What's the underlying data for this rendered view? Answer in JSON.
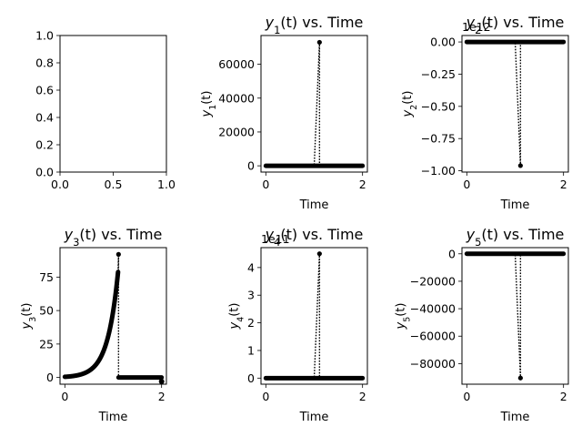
{
  "chart_data": [
    {
      "type": "line",
      "title": "",
      "xlabel": "",
      "ylabel": "",
      "xlim": [
        0.0,
        1.0
      ],
      "ylim": [
        0.0,
        1.0
      ],
      "xticks": [
        0.0,
        0.5,
        1.0
      ],
      "xtick_labels": [
        "0.0",
        "0.5",
        "1.0"
      ],
      "yticks": [
        0.0,
        0.2,
        0.4,
        0.6,
        0.8,
        1.0
      ],
      "ytick_labels": [
        "0.0",
        "0.2",
        "0.4",
        "0.6",
        "0.8",
        "1.0"
      ],
      "series": []
    },
    {
      "type": "line",
      "title": "y_1(t) vs. Time",
      "title_main": "y",
      "title_sub": "1",
      "title_rest": "(t) vs. Time",
      "xlabel": "Time",
      "ylabel": "y_1(t)",
      "ylabel_main": "y",
      "ylabel_sub": "1",
      "ylabel_rest": "(t)",
      "xlim": [
        -0.1,
        2.1
      ],
      "ylim": [
        -3700,
        77000
      ],
      "xticks": [
        0,
        2
      ],
      "xtick_labels": [
        "0",
        "2"
      ],
      "yticks": [
        0,
        20000,
        40000,
        60000
      ],
      "ytick_labels": [
        "0",
        "20000",
        "40000",
        "60000"
      ],
      "color": "#000000",
      "baseline": 0,
      "x_start": 0,
      "x_end": 2,
      "spike": {
        "x": 1.11,
        "y": 73000
      },
      "series": [
        {
          "x": [
            0,
            0.5,
            1.0,
            1.11,
            1.11,
            1.5,
            2.0
          ],
          "y": [
            0,
            0,
            0,
            73000,
            0,
            0,
            0
          ]
        }
      ]
    },
    {
      "type": "line",
      "title": "y_2(t) vs. Time",
      "title_main": "y",
      "title_sub": "2",
      "title_rest": "(t) vs. Time",
      "xlabel": "Time",
      "ylabel": "y_2(t)",
      "ylabel_main": "y",
      "ylabel_sub": "2",
      "ylabel_rest": "(t)",
      "offset_text": "1e12",
      "xlim": [
        -0.1,
        2.1
      ],
      "ylim": [
        -1.01,
        0.05
      ],
      "xticks": [
        0,
        2
      ],
      "xtick_labels": [
        "0",
        "2"
      ],
      "yticks": [
        0.0,
        -0.25,
        -0.5,
        -0.75,
        -1.0
      ],
      "ytick_labels": [
        "0.00",
        "−0.25",
        "−0.50",
        "−0.75",
        "−1.00"
      ],
      "color": "#000000",
      "baseline": 0,
      "x_start": 0,
      "x_end": 2,
      "spike": {
        "x": 1.11,
        "y": -0.96
      },
      "series": [
        {
          "x": [
            0,
            0.5,
            1.0,
            1.11,
            1.11,
            1.5,
            2.0
          ],
          "y": [
            0,
            0,
            0,
            -0.96,
            0,
            0,
            0
          ]
        }
      ]
    },
    {
      "type": "line",
      "title": "y_3(t) vs. Time",
      "title_main": "y",
      "title_sub": "3",
      "title_rest": "(t) vs. Time",
      "xlabel": "Time",
      "ylabel": "y_3(t)",
      "ylabel_main": "y",
      "ylabel_sub": "3",
      "ylabel_rest": "(t)",
      "xlim": [
        -0.1,
        2.1
      ],
      "ylim": [
        -5,
        97
      ],
      "xticks": [
        0,
        2
      ],
      "xtick_labels": [
        "0",
        "2"
      ],
      "yticks": [
        0,
        25,
        50,
        75
      ],
      "ytick_labels": [
        "0",
        "25",
        "50",
        "75"
      ],
      "color": "#000000",
      "growth": {
        "y0": 0.5,
        "rate": 4.6,
        "x_end": 1.1
      },
      "spike": {
        "x": 1.11,
        "y": 92
      },
      "series": [
        {
          "x": [
            0,
            0.2,
            0.4,
            0.5,
            0.6,
            0.7,
            0.8,
            0.9,
            1.0,
            1.05,
            1.1,
            1.11,
            1.11,
            1.5,
            1.95,
            2.0
          ],
          "y": [
            0.5,
            1.25,
            3.1,
            5.0,
            7.8,
            12.4,
            19.6,
            31.0,
            49.7,
            62.5,
            78.0,
            92.0,
            0,
            0,
            0,
            -3
          ]
        }
      ]
    },
    {
      "type": "line",
      "title": "y_4(t) vs. Time",
      "title_main": "y",
      "title_sub": "4",
      "title_rest": "(t) vs. Time",
      "xlabel": "Time",
      "ylabel": "y_4(t)",
      "ylabel_main": "y",
      "ylabel_sub": "4",
      "ylabel_rest": "(t)",
      "offset_text": "1e11",
      "xlim": [
        -0.1,
        2.1
      ],
      "ylim": [
        -0.22,
        4.72
      ],
      "xticks": [
        0,
        2
      ],
      "xtick_labels": [
        "0",
        "2"
      ],
      "yticks": [
        0,
        1,
        2,
        3,
        4
      ],
      "ytick_labels": [
        "0",
        "1",
        "2",
        "3",
        "4"
      ],
      "color": "#000000",
      "baseline": 0,
      "x_start": 0,
      "x_end": 2,
      "spike": {
        "x": 1.11,
        "y": 4.5
      },
      "series": [
        {
          "x": [
            0,
            0.5,
            1.0,
            1.11,
            1.11,
            1.5,
            2.0
          ],
          "y": [
            0,
            0,
            0,
            4.5,
            0,
            0,
            0
          ]
        }
      ]
    },
    {
      "type": "line",
      "title": "y_5(t) vs. Time",
      "title_main": "y",
      "title_sub": "5",
      "title_rest": "(t) vs. Time",
      "xlabel": "Time",
      "ylabel": "y_5(t)",
      "ylabel_main": "y",
      "ylabel_sub": "5",
      "ylabel_rest": "(t)",
      "xlim": [
        -0.1,
        2.1
      ],
      "ylim": [
        -95000,
        4500
      ],
      "xticks": [
        0,
        2
      ],
      "xtick_labels": [
        "0",
        "2"
      ],
      "yticks": [
        0,
        -20000,
        -40000,
        -60000,
        -80000
      ],
      "ytick_labels": [
        "0",
        "−20000",
        "−40000",
        "−60000",
        "−80000"
      ],
      "color": "#000000",
      "baseline": 0,
      "x_start": 0,
      "x_end": 2,
      "spike": {
        "x": 1.11,
        "y": -90500
      },
      "series": [
        {
          "x": [
            0,
            0.5,
            1.0,
            1.11,
            1.11,
            1.5,
            2.0
          ],
          "y": [
            0,
            0,
            0,
            -90500,
            0,
            0,
            0
          ]
        }
      ]
    }
  ]
}
